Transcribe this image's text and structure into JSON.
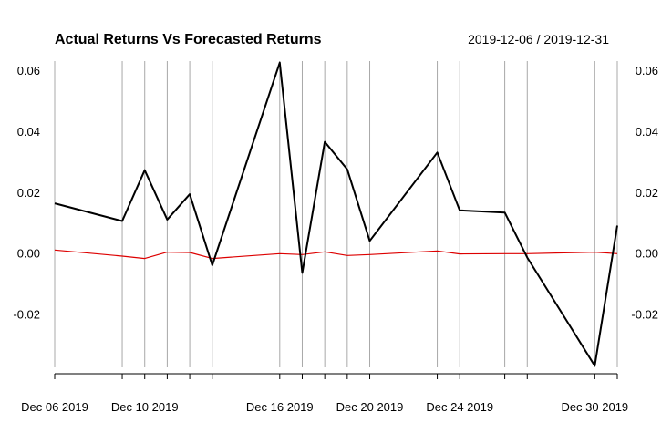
{
  "chart_data": {
    "type": "line",
    "title": "Actual Returns Vs Forecasted Returns",
    "date_range": "2019-12-06 / 2019-12-31",
    "x": [
      "2019-12-06",
      "2019-12-09",
      "2019-12-10",
      "2019-12-11",
      "2019-12-12",
      "2019-12-13",
      "2019-12-16",
      "2019-12-17",
      "2019-12-18",
      "2019-12-19",
      "2019-12-20",
      "2019-12-23",
      "2019-12-24",
      "2019-12-26",
      "2019-12-27",
      "2019-12-30",
      "2019-12-31"
    ],
    "x_tick_labels": [
      {
        "date": "2019-12-06",
        "label": "Dec 06 2019"
      },
      {
        "date": "2019-12-10",
        "label": "Dec 10 2019"
      },
      {
        "date": "2019-12-16",
        "label": "Dec 16 2019"
      },
      {
        "date": "2019-12-20",
        "label": "Dec 20 2019"
      },
      {
        "date": "2019-12-24",
        "label": "Dec 24 2019"
      },
      {
        "date": "2019-12-30",
        "label": "Dec 30 2019"
      }
    ],
    "y_ticks": [
      0.06,
      0.04,
      0.02,
      0.0,
      -0.02
    ],
    "y_tick_labels": [
      "0.06",
      "0.04",
      "0.02",
      "0.00",
      "-0.02"
    ],
    "ylim": [
      -0.0375,
      0.063
    ],
    "grid": "vertical",
    "series": [
      {
        "role": "actual",
        "color": "#000000",
        "values": [
          0.0163,
          0.0105,
          0.0272,
          0.011,
          0.0193,
          -0.004,
          0.0625,
          -0.0065,
          0.0365,
          0.0275,
          0.004,
          0.033,
          0.014,
          0.0133,
          -0.0015,
          -0.037,
          0.009
        ]
      },
      {
        "role": "forecast",
        "color": "#dd0000",
        "values": [
          0.001,
          -0.001,
          -0.0018,
          0.0003,
          0.0002,
          -0.0018,
          -0.0002,
          -0.0005,
          0.0004,
          -0.0008,
          -0.0005,
          0.0007,
          -0.0003,
          -0.0002,
          -0.0002,
          0.0003,
          -0.0002
        ]
      }
    ]
  }
}
